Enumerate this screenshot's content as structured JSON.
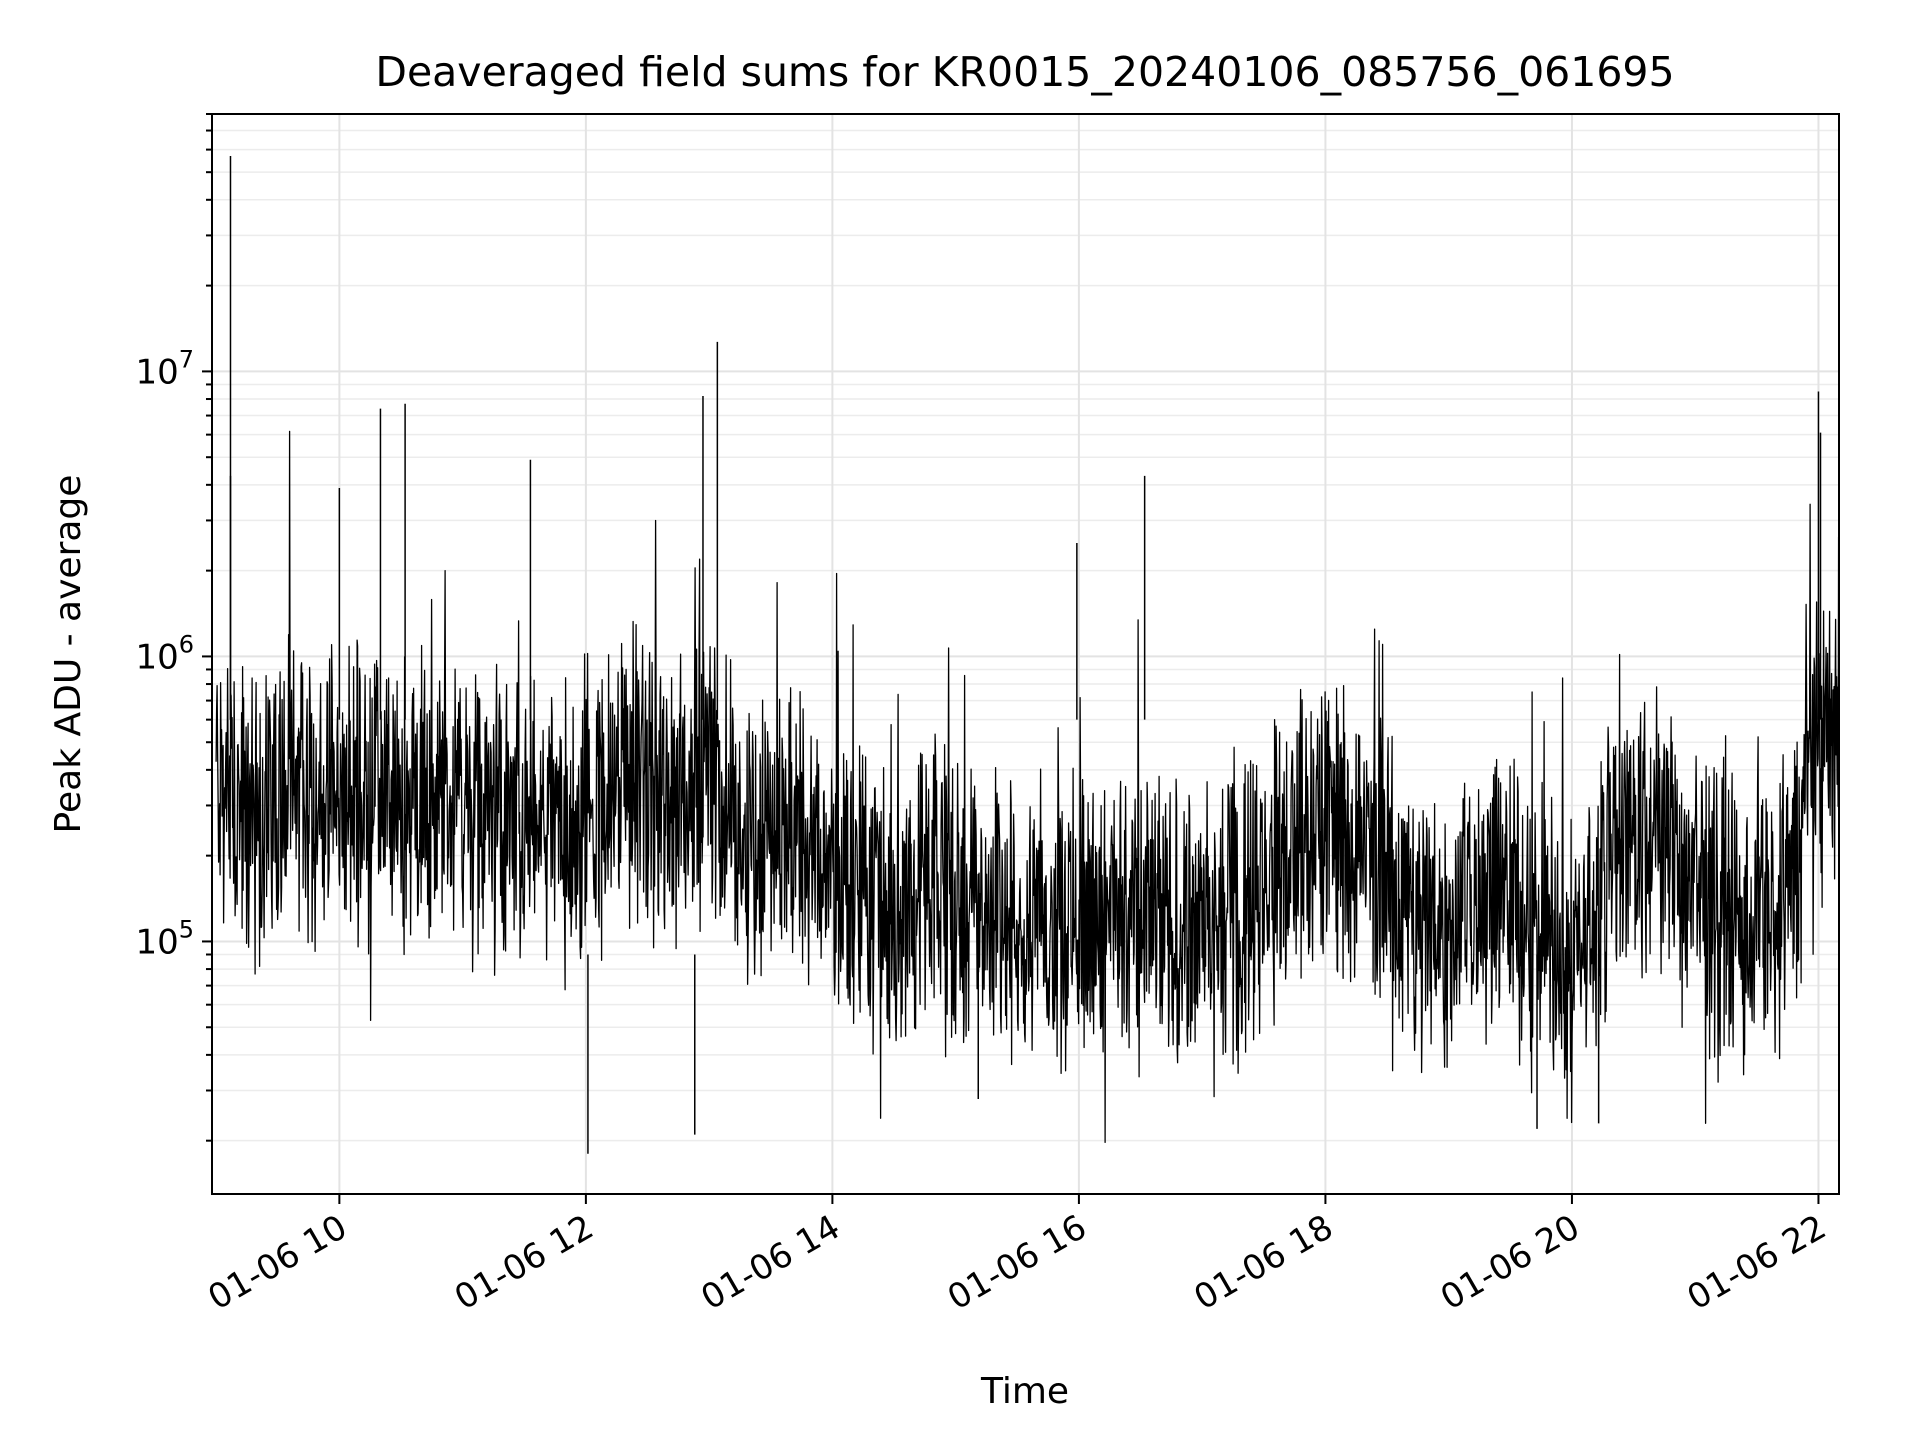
{
  "chart_data": {
    "type": "line",
    "title": "Deaveraged field sums for KR0015_20240106_085756_061695",
    "xlabel": "Time",
    "ylabel": "Peak ADU - average",
    "yscale": "log",
    "grid": true,
    "line_color": "#000000",
    "xlim": [
      "2024-01-06 08:58",
      "2024-01-06 22:10"
    ],
    "ylim": [
      13000,
      80000000
    ],
    "x_ticks": [
      {
        "value": "2024-01-06 10:00",
        "label": "01-06 10"
      },
      {
        "value": "2024-01-06 12:00",
        "label": "01-06 12"
      },
      {
        "value": "2024-01-06 14:00",
        "label": "01-06 14"
      },
      {
        "value": "2024-01-06 16:00",
        "label": "01-06 16"
      },
      {
        "value": "2024-01-06 18:00",
        "label": "01-06 18"
      },
      {
        "value": "2024-01-06 20:00",
        "label": "01-06 20"
      },
      {
        "value": "2024-01-06 22:00",
        "label": "01-06 22"
      }
    ],
    "y_ticks": [
      {
        "value": 100000,
        "base": "10",
        "exp": "5"
      },
      {
        "value": 1000000,
        "base": "10",
        "exp": "6"
      },
      {
        "value": 10000000,
        "base": "10",
        "exp": "7"
      }
    ],
    "series": [
      {
        "x": [
          "2024-01-06 09:00",
          "2024-01-06 09:08",
          "2024-01-06 09:15",
          "2024-01-06 09:30",
          "2024-01-06 09:45",
          "2024-01-06 10:00",
          "2024-01-06 10:20",
          "2024-01-06 10:40",
          "2024-01-06 11:00",
          "2024-01-06 11:20",
          "2024-01-06 11:40",
          "2024-01-06 12:00",
          "2024-01-06 12:20",
          "2024-01-06 12:40",
          "2024-01-06 13:00",
          "2024-01-06 13:20",
          "2024-01-06 13:40",
          "2024-01-06 14:00",
          "2024-01-06 14:20",
          "2024-01-06 14:40",
          "2024-01-06 15:00",
          "2024-01-06 15:20",
          "2024-01-06 15:40",
          "2024-01-06 16:00",
          "2024-01-06 16:20",
          "2024-01-06 16:40",
          "2024-01-06 17:00",
          "2024-01-06 17:20",
          "2024-01-06 17:40",
          "2024-01-06 18:00",
          "2024-01-06 18:20",
          "2024-01-06 18:40",
          "2024-01-06 19:00",
          "2024-01-06 19:20",
          "2024-01-06 19:40",
          "2024-01-06 20:00",
          "2024-01-06 20:20",
          "2024-01-06 20:40",
          "2024-01-06 21:00",
          "2024-01-06 21:20",
          "2024-01-06 21:40",
          "2024-01-06 22:00",
          "2024-01-06 22:10"
        ],
        "y": [
          400000,
          300000,
          250000,
          350000,
          320000,
          300000,
          320000,
          280000,
          300000,
          260000,
          250000,
          220000,
          380000,
          300000,
          420000,
          220000,
          230000,
          170000,
          150000,
          140000,
          145000,
          130000,
          120000,
          130000,
          125000,
          115000,
          110000,
          130000,
          200000,
          280000,
          200000,
          130000,
          110000,
          160000,
          120000,
          80000,
          200000,
          250000,
          150000,
          120000,
          110000,
          450000,
          500000
        ]
      }
    ],
    "spikes": [
      {
        "x": "2024-01-06 09:07",
        "y": 57000000
      },
      {
        "x": "2024-01-06 09:07",
        "y": 4300000
      },
      {
        "x": "2024-01-06 10:00",
        "y": 3900000
      },
      {
        "x": "2024-01-06 10:20",
        "y": 7400000
      },
      {
        "x": "2024-01-06 10:32",
        "y": 7700000
      },
      {
        "x": "2024-01-06 11:33",
        "y": 4900000
      },
      {
        "x": "2024-01-06 12:57",
        "y": 8200000
      },
      {
        "x": "2024-01-06 13:04",
        "y": 12700000
      },
      {
        "x": "2024-01-06 15:59",
        "y": 2500000
      },
      {
        "x": "2024-01-06 16:32",
        "y": 4300000
      },
      {
        "x": "2024-01-06 22:00",
        "y": 8500000
      },
      {
        "x": "2024-01-06 22:01",
        "y": 6100000
      },
      {
        "x": "2024-01-06 12:01",
        "y": 18000
      },
      {
        "x": "2024-01-06 12:53",
        "y": 21000
      },
      {
        "x": "2024-01-06 15:11",
        "y": 28000
      },
      {
        "x": "2024-01-06 19:43",
        "y": 22000
      },
      {
        "x": "2024-01-06 20:13",
        "y": 23000
      }
    ]
  }
}
